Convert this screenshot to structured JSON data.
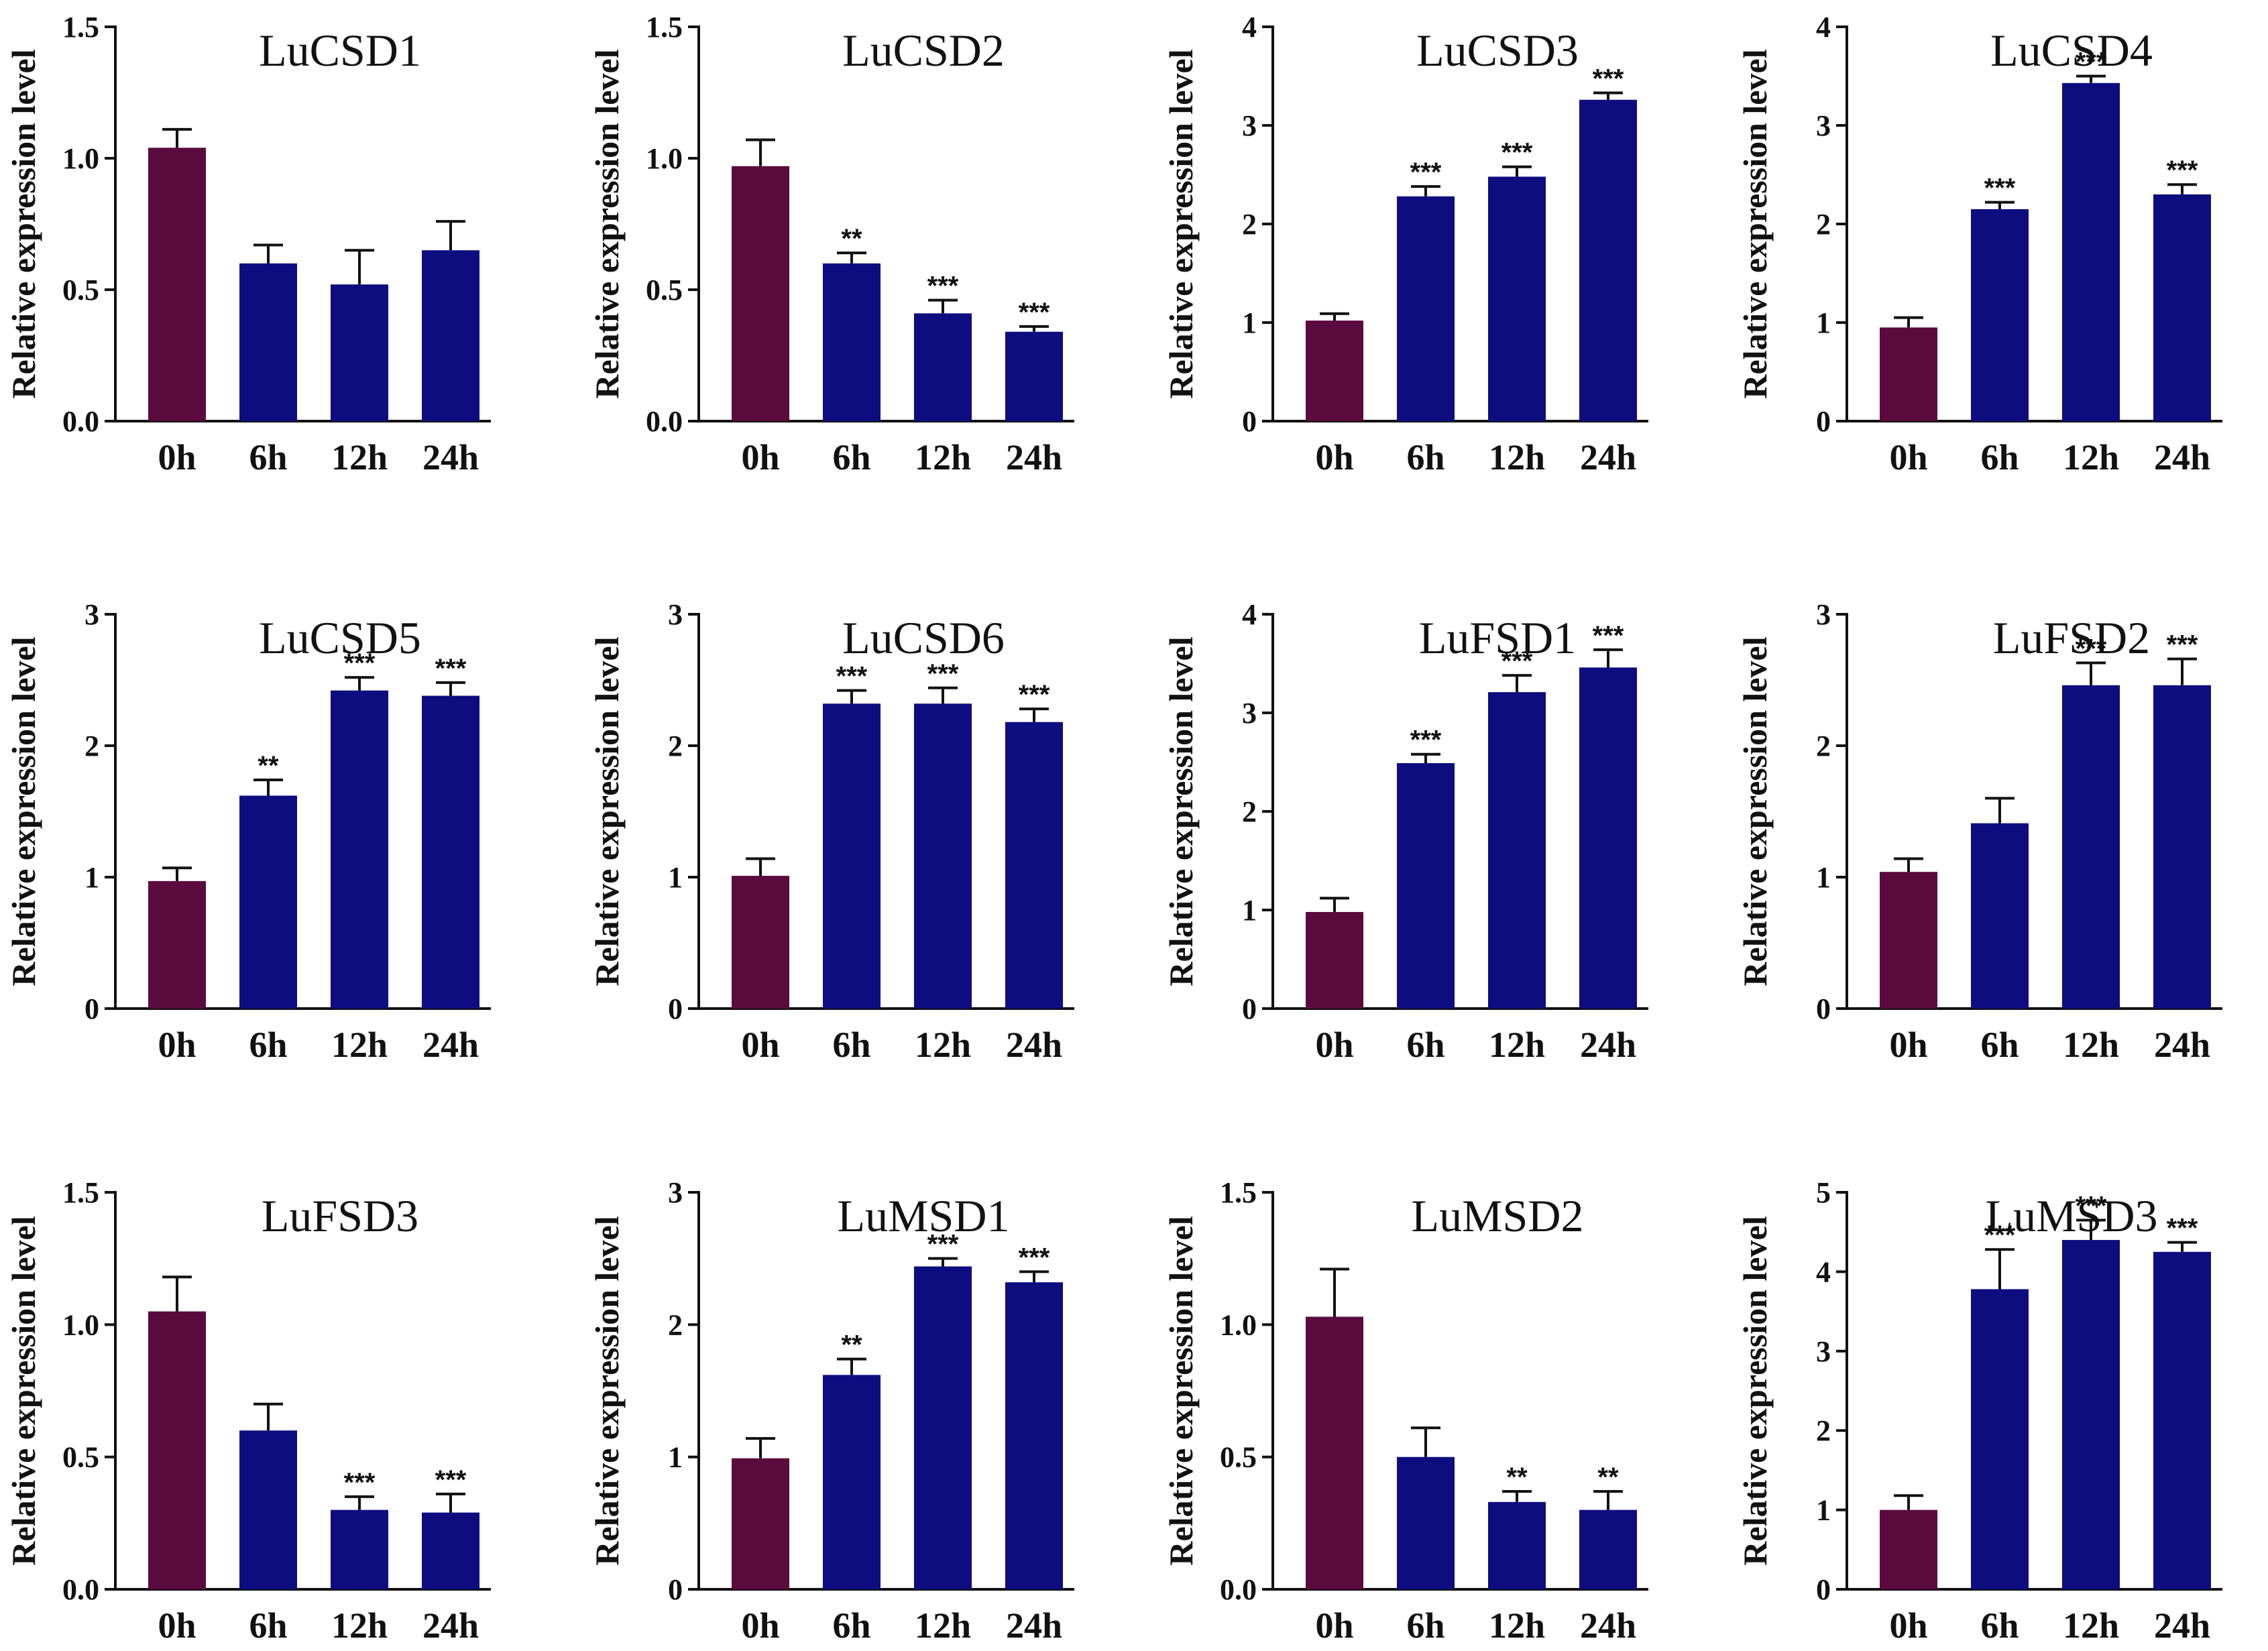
{
  "figure": {
    "ylabel": "Relative expression level",
    "colors": {
      "control": "#5a0a3e",
      "treatment": "#0d0d80"
    }
  },
  "chart_data": [
    {
      "type": "bar",
      "title": "LuCSD1",
      "categories": [
        "0h",
        "6h",
        "12h",
        "24h"
      ],
      "values": [
        1.04,
        0.6,
        0.52,
        0.65
      ],
      "errors": [
        0.07,
        0.07,
        0.13,
        0.11
      ],
      "significance": [
        "",
        "",
        "",
        ""
      ],
      "ylabel": "Relative expression level",
      "ylim": [
        0,
        1.5
      ],
      "yticks": [
        0.0,
        0.5,
        1.0,
        1.5
      ],
      "ytick_labels": [
        "0.0",
        "0.5",
        "1.0",
        "1.5"
      ]
    },
    {
      "type": "bar",
      "title": "LuCSD2",
      "categories": [
        "0h",
        "6h",
        "12h",
        "24h"
      ],
      "values": [
        0.97,
        0.6,
        0.41,
        0.34
      ],
      "errors": [
        0.1,
        0.04,
        0.05,
        0.02
      ],
      "significance": [
        "",
        "**",
        "***",
        "***"
      ],
      "ylabel": "Relative expression level",
      "ylim": [
        0,
        1.5
      ],
      "yticks": [
        0.0,
        0.5,
        1.0,
        1.5
      ],
      "ytick_labels": [
        "0.0",
        "0.5",
        "1.0",
        "1.5"
      ]
    },
    {
      "type": "bar",
      "title": "LuCSD3",
      "categories": [
        "0h",
        "6h",
        "12h",
        "24h"
      ],
      "values": [
        1.02,
        2.28,
        2.48,
        3.26
      ],
      "errors": [
        0.07,
        0.1,
        0.1,
        0.07
      ],
      "significance": [
        "",
        "***",
        "***",
        "***"
      ],
      "ylabel": "Relative expression level",
      "ylim": [
        0,
        4
      ],
      "yticks": [
        0,
        1,
        2,
        3,
        4
      ],
      "ytick_labels": [
        "0",
        "1",
        "2",
        "3",
        "4"
      ]
    },
    {
      "type": "bar",
      "title": "LuCSD4",
      "categories": [
        "0h",
        "6h",
        "12h",
        "24h"
      ],
      "values": [
        0.95,
        2.15,
        3.43,
        2.3
      ],
      "errors": [
        0.1,
        0.07,
        0.07,
        0.1
      ],
      "significance": [
        "",
        "***",
        "***",
        "***"
      ],
      "ylabel": "Relative expression level",
      "ylim": [
        0,
        4
      ],
      "yticks": [
        0,
        1,
        2,
        3,
        4
      ],
      "ytick_labels": [
        "0",
        "1",
        "2",
        "3",
        "4"
      ]
    },
    {
      "type": "bar",
      "title": "LuCSD5",
      "categories": [
        "0h",
        "6h",
        "12h",
        "24h"
      ],
      "values": [
        0.97,
        1.62,
        2.42,
        2.38
      ],
      "errors": [
        0.1,
        0.12,
        0.1,
        0.1
      ],
      "significance": [
        "",
        "**",
        "***",
        "***"
      ],
      "ylabel": "Relative expression level",
      "ylim": [
        0,
        3
      ],
      "yticks": [
        0,
        1,
        2,
        3
      ],
      "ytick_labels": [
        "0",
        "1",
        "2",
        "3"
      ]
    },
    {
      "type": "bar",
      "title": "LuCSD6",
      "categories": [
        "0h",
        "6h",
        "12h",
        "24h"
      ],
      "values": [
        1.01,
        2.32,
        2.32,
        2.18
      ],
      "errors": [
        0.13,
        0.1,
        0.12,
        0.1
      ],
      "significance": [
        "",
        "***",
        "***",
        "***"
      ],
      "ylabel": "Relative expression level",
      "ylim": [
        0,
        3
      ],
      "yticks": [
        0,
        1,
        2,
        3
      ],
      "ytick_labels": [
        "0",
        "1",
        "2",
        "3"
      ]
    },
    {
      "type": "bar",
      "title": "LuFSD1",
      "categories": [
        "0h",
        "6h",
        "12h",
        "24h"
      ],
      "values": [
        0.98,
        2.49,
        3.21,
        3.46
      ],
      "errors": [
        0.14,
        0.09,
        0.17,
        0.18
      ],
      "significance": [
        "",
        "***",
        "***",
        "***"
      ],
      "ylabel": "Relative expression level",
      "ylim": [
        0,
        4
      ],
      "yticks": [
        0,
        1,
        2,
        3,
        4
      ],
      "ytick_labels": [
        "0",
        "1",
        "2",
        "3",
        "4"
      ]
    },
    {
      "type": "bar",
      "title": "LuFSD2",
      "categories": [
        "0h",
        "6h",
        "12h",
        "24h"
      ],
      "values": [
        1.04,
        1.41,
        2.46,
        2.46
      ],
      "errors": [
        0.1,
        0.19,
        0.17,
        0.2
      ],
      "significance": [
        "",
        "",
        "***",
        "***"
      ],
      "ylabel": "Relative expression level",
      "ylim": [
        0,
        3
      ],
      "yticks": [
        0,
        1,
        2,
        3
      ],
      "ytick_labels": [
        "0",
        "1",
        "2",
        "3"
      ]
    },
    {
      "type": "bar",
      "title": "LuFSD3",
      "categories": [
        "0h",
        "6h",
        "12h",
        "24h"
      ],
      "values": [
        1.05,
        0.6,
        0.3,
        0.29
      ],
      "errors": [
        0.13,
        0.1,
        0.05,
        0.07
      ],
      "significance": [
        "",
        "",
        "***",
        "***"
      ],
      "ylabel": "Relative expression level",
      "ylim": [
        0,
        1.5
      ],
      "yticks": [
        0.0,
        0.5,
        1.0,
        1.5
      ],
      "ytick_labels": [
        "0.0",
        "0.5",
        "1.0",
        "1.5"
      ]
    },
    {
      "type": "bar",
      "title": "LuMSD1",
      "categories": [
        "0h",
        "6h",
        "12h",
        "24h"
      ],
      "values": [
        0.99,
        1.62,
        2.44,
        2.32
      ],
      "errors": [
        0.15,
        0.12,
        0.06,
        0.08
      ],
      "significance": [
        "",
        "**",
        "***",
        "***"
      ],
      "ylabel": "Relative expression level",
      "ylim": [
        0,
        3
      ],
      "yticks": [
        0,
        1,
        2,
        3
      ],
      "ytick_labels": [
        "0",
        "1",
        "2",
        "3"
      ]
    },
    {
      "type": "bar",
      "title": "LuMSD2",
      "categories": [
        "0h",
        "6h",
        "12h",
        "24h"
      ],
      "values": [
        1.03,
        0.5,
        0.33,
        0.3
      ],
      "errors": [
        0.18,
        0.11,
        0.04,
        0.07
      ],
      "significance": [
        "",
        "",
        "**",
        "**"
      ],
      "ylabel": "Relative expression level",
      "ylim": [
        0,
        1.5
      ],
      "yticks": [
        0.0,
        0.5,
        1.0,
        1.5
      ],
      "ytick_labels": [
        "0.0",
        "0.5",
        "1.0",
        "1.5"
      ]
    },
    {
      "type": "bar",
      "title": "LuMSD3",
      "categories": [
        "0h",
        "6h",
        "12h",
        "24h"
      ],
      "values": [
        1.0,
        3.78,
        4.4,
        4.25
      ],
      "errors": [
        0.18,
        0.5,
        0.25,
        0.12
      ],
      "significance": [
        "",
        "***",
        "***",
        "***"
      ],
      "ylabel": "Relative expression level",
      "ylim": [
        0,
        5
      ],
      "yticks": [
        0,
        1,
        2,
        3,
        4,
        5
      ],
      "ytick_labels": [
        "0",
        "1",
        "2",
        "3",
        "4",
        "5"
      ]
    }
  ]
}
